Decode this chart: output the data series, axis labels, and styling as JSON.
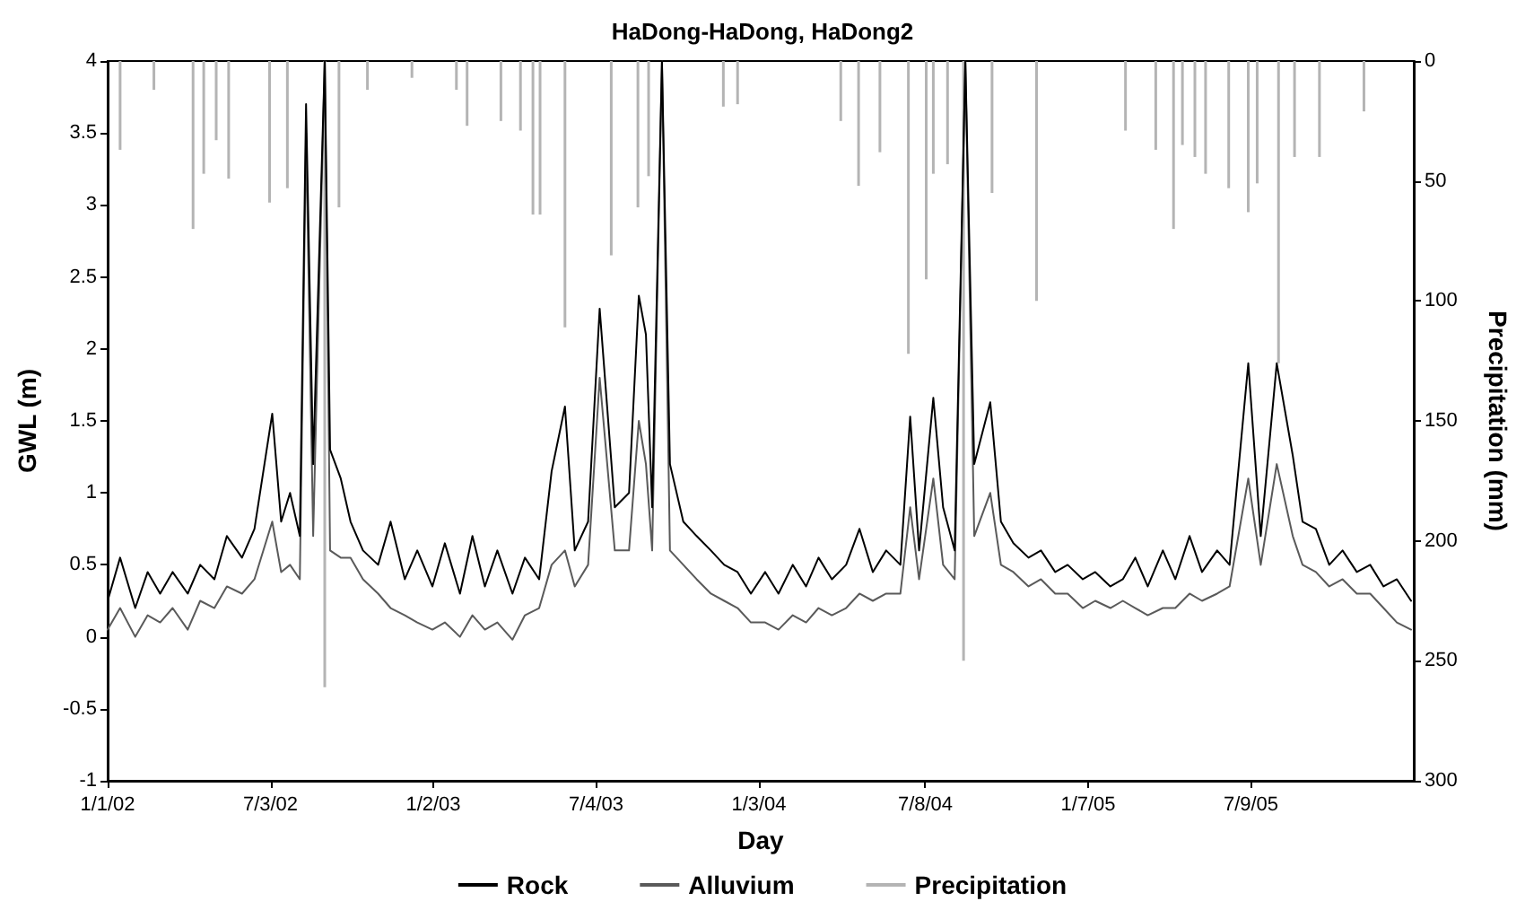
{
  "chart_data": {
    "type": "line",
    "title": "HaDong-HaDong, HaDong2",
    "xlabel": "Day",
    "ylabel": "GWL (m)",
    "y2label": "Precipitation (mm)",
    "x": [
      "2002-01-01",
      "2002-01-15",
      "2002-02-01",
      "2002-02-15",
      "2002-03-01",
      "2002-03-15",
      "2002-04-01",
      "2002-04-15",
      "2002-05-01",
      "2002-05-15",
      "2002-06-01",
      "2002-06-15",
      "2002-07-05",
      "2002-07-15",
      "2002-07-25",
      "2002-08-05",
      "2002-08-12",
      "2002-08-20",
      "2002-09-02",
      "2002-09-08",
      "2002-09-20",
      "2002-10-01",
      "2002-10-15",
      "2002-11-01",
      "2002-11-15",
      "2002-12-01",
      "2002-12-15",
      "2003-01-01",
      "2003-01-15",
      "2003-02-01",
      "2003-02-15",
      "2003-03-01",
      "2003-03-15",
      "2003-04-01",
      "2003-04-15",
      "2003-05-01",
      "2003-05-15",
      "2003-05-30",
      "2003-06-10",
      "2003-06-25",
      "2003-07-08",
      "2003-07-25",
      "2003-08-10",
      "2003-08-21",
      "2003-08-29",
      "2003-09-05",
      "2003-09-16",
      "2003-09-25",
      "2003-10-10",
      "2003-10-25",
      "2003-11-10",
      "2003-11-25",
      "2003-12-10",
      "2003-12-25",
      "2004-01-10",
      "2004-01-25",
      "2004-02-10",
      "2004-02-25",
      "2004-03-10",
      "2004-03-25",
      "2004-04-10",
      "2004-04-25",
      "2004-05-10",
      "2004-05-25",
      "2004-06-10",
      "2004-06-21",
      "2004-07-01",
      "2004-07-17",
      "2004-07-28",
      "2004-08-10",
      "2004-08-22",
      "2004-09-01",
      "2004-09-19",
      "2004-10-01",
      "2004-10-15",
      "2004-11-01",
      "2004-11-15",
      "2004-12-01",
      "2004-12-15",
      "2005-01-01",
      "2005-01-15",
      "2005-02-01",
      "2005-02-15",
      "2005-03-01",
      "2005-03-15",
      "2005-04-01",
      "2005-04-15",
      "2005-05-01",
      "2005-05-15",
      "2005-06-01",
      "2005-06-15",
      "2005-07-06",
      "2005-07-20",
      "2005-08-07",
      "2005-08-25",
      "2005-09-05",
      "2005-09-20",
      "2005-10-05",
      "2005-10-20",
      "2005-11-05",
      "2005-11-20",
      "2005-12-05",
      "2005-12-20",
      "2006-01-05"
    ],
    "series": [
      {
        "name": "Rock",
        "color": "#000000",
        "values": [
          0.25,
          0.55,
          0.2,
          0.45,
          0.3,
          0.45,
          0.3,
          0.5,
          0.4,
          0.7,
          0.55,
          0.75,
          1.55,
          0.8,
          1.0,
          0.7,
          3.7,
          1.2,
          4,
          1.3,
          1.1,
          0.8,
          0.6,
          0.5,
          0.8,
          0.4,
          0.6,
          0.35,
          0.65,
          0.3,
          0.7,
          0.35,
          0.6,
          0.3,
          0.55,
          0.4,
          1.15,
          1.6,
          0.6,
          0.8,
          2.28,
          0.9,
          1.0,
          2.37,
          2.1,
          0.9,
          4,
          1.2,
          0.8,
          0.7,
          0.6,
          0.5,
          0.45,
          0.3,
          0.45,
          0.3,
          0.5,
          0.35,
          0.55,
          0.4,
          0.5,
          0.75,
          0.45,
          0.6,
          0.5,
          1.53,
          0.6,
          1.66,
          0.9,
          0.6,
          4,
          1.2,
          1.63,
          0.8,
          0.65,
          0.55,
          0.6,
          0.45,
          0.5,
          0.4,
          0.45,
          0.35,
          0.4,
          0.55,
          0.35,
          0.6,
          0.4,
          0.7,
          0.45,
          0.6,
          0.5,
          1.9,
          0.7,
          1.9,
          1.26,
          0.8,
          0.75,
          0.5,
          0.6,
          0.45,
          0.5,
          0.35,
          0.4,
          0.25
        ]
      },
      {
        "name": "Alluvium",
        "color": "#5a5a5a",
        "values": [
          0.05,
          0.2,
          0.0,
          0.15,
          0.1,
          0.2,
          0.05,
          0.25,
          0.2,
          0.35,
          0.3,
          0.4,
          0.8,
          0.45,
          0.5,
          0.4,
          3.5,
          0.7,
          4,
          0.6,
          0.55,
          0.55,
          0.4,
          0.3,
          0.2,
          0.15,
          0.1,
          0.05,
          0.1,
          0.0,
          0.15,
          0.05,
          0.1,
          -0.02,
          0.15,
          0.2,
          0.5,
          0.6,
          0.35,
          0.5,
          1.8,
          0.6,
          0.6,
          1.5,
          1.2,
          0.6,
          4,
          0.6,
          0.5,
          0.4,
          0.3,
          0.25,
          0.2,
          0.1,
          0.1,
          0.05,
          0.15,
          0.1,
          0.2,
          0.15,
          0.2,
          0.3,
          0.25,
          0.3,
          0.3,
          0.9,
          0.4,
          1.1,
          0.5,
          0.4,
          4,
          0.7,
          1.0,
          0.5,
          0.45,
          0.35,
          0.4,
          0.3,
          0.3,
          0.2,
          0.25,
          0.2,
          0.25,
          0.2,
          0.15,
          0.2,
          0.2,
          0.3,
          0.25,
          0.3,
          0.35,
          1.1,
          0.5,
          1.2,
          0.7,
          0.5,
          0.45,
          0.35,
          0.4,
          0.3,
          0.3,
          0.2,
          0.1,
          0.05
        ]
      },
      {
        "name": "Precipitation",
        "type": "bar",
        "axis": "y2",
        "color": "#b4b4b4",
        "x": [
          "2002-01-15",
          "2002-02-22",
          "2002-04-07",
          "2002-04-19",
          "2002-05-03",
          "2002-05-17",
          "2002-07-02",
          "2002-07-22",
          "2002-09-02",
          "2002-09-18",
          "2002-10-20",
          "2002-12-09",
          "2003-01-28",
          "2003-02-09",
          "2003-03-19",
          "2003-04-10",
          "2003-04-24",
          "2003-05-02",
          "2003-05-30",
          "2003-07-21",
          "2003-08-20",
          "2003-09-01",
          "2003-11-24",
          "2003-12-10",
          "2004-04-04",
          "2004-04-24",
          "2004-05-18",
          "2004-06-19",
          "2004-07-09",
          "2004-07-17",
          "2004-08-02",
          "2004-08-20",
          "2004-09-21",
          "2004-11-10",
          "2005-02-18",
          "2005-03-24",
          "2005-04-13",
          "2005-04-23",
          "2005-05-07",
          "2005-05-19",
          "2005-06-14",
          "2005-07-06",
          "2005-07-16",
          "2005-08-09",
          "2005-08-27",
          "2005-09-24",
          "2005-11-13"
        ],
        "values": [
          37,
          12,
          70,
          47,
          33,
          49,
          59,
          53,
          261,
          61,
          12,
          7,
          12,
          27,
          25,
          29,
          64,
          64,
          111,
          81,
          61,
          48,
          19,
          18,
          25,
          52,
          38,
          122,
          91,
          47,
          43,
          250,
          55,
          100,
          29,
          37,
          70,
          35,
          40,
          47,
          53,
          63,
          51,
          126,
          40,
          40,
          21
        ]
      }
    ],
    "xlim": [
      "2002-01-01",
      "2006-01-08"
    ],
    "xticks": [
      {
        "value": "2002-01-01",
        "label": "1/1/02"
      },
      {
        "value": "2002-07-03",
        "label": "7/3/02"
      },
      {
        "value": "2003-01-02",
        "label": "1/2/03"
      },
      {
        "value": "2003-07-04",
        "label": "7/4/03"
      },
      {
        "value": "2004-01-03",
        "label": "1/3/04"
      },
      {
        "value": "2004-07-08",
        "label": "7/8/04"
      },
      {
        "value": "2005-01-07",
        "label": "1/7/05"
      },
      {
        "value": "2005-07-09",
        "label": "7/9/05"
      }
    ],
    "ylim": [
      -1,
      4
    ],
    "yticks": [
      -1,
      -0.5,
      0,
      0.5,
      1,
      1.5,
      2,
      2.5,
      3,
      3.5,
      4
    ],
    "y2lim": [
      300,
      0
    ],
    "y2ticks": [
      0,
      50,
      100,
      150,
      200,
      250,
      300
    ],
    "legend": "bottom",
    "grid": false,
    "marker": "none",
    "line_style": "solid"
  }
}
